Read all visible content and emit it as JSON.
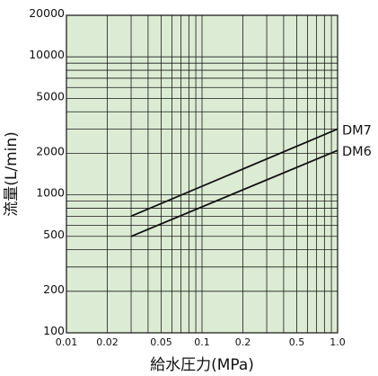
{
  "chart_data": {
    "type": "line",
    "xlabel": "給水圧力(MPa)",
    "ylabel": "流量(L/min)",
    "xscale": "log",
    "yscale": "log",
    "xlim": [
      0.01,
      1.0
    ],
    "ylim": [
      100,
      20000
    ],
    "grid": true,
    "x_ticks": [
      {
        "value": 0.01,
        "label": "0.01"
      },
      {
        "value": 0.02,
        "label": "0.02"
      },
      {
        "value": 0.05,
        "label": "0.05"
      },
      {
        "value": 0.1,
        "label": "0.1"
      },
      {
        "value": 0.2,
        "label": "0.2"
      },
      {
        "value": 0.5,
        "label": "0.5"
      },
      {
        "value": 1.0,
        "label": "1.0"
      }
    ],
    "y_ticks": [
      {
        "value": 100,
        "label": "100"
      },
      {
        "value": 200,
        "label": "200"
      },
      {
        "value": 500,
        "label": "500"
      },
      {
        "value": 1000,
        "label": "1000"
      },
      {
        "value": 2000,
        "label": "2000"
      },
      {
        "value": 5000,
        "label": "5000"
      },
      {
        "value": 10000,
        "label": "10000"
      },
      {
        "value": 20000,
        "label": "20000"
      }
    ],
    "series": [
      {
        "name": "DM7",
        "x": [
          0.03,
          1.0
        ],
        "y": [
          700,
          3000
        ]
      },
      {
        "name": "DM6",
        "x": [
          0.03,
          1.0
        ],
        "y": [
          500,
          2100
        ]
      }
    ],
    "colors": {
      "plot_background": "#dcecd4",
      "grid": "#1a1a1a",
      "line": "#111111"
    }
  }
}
